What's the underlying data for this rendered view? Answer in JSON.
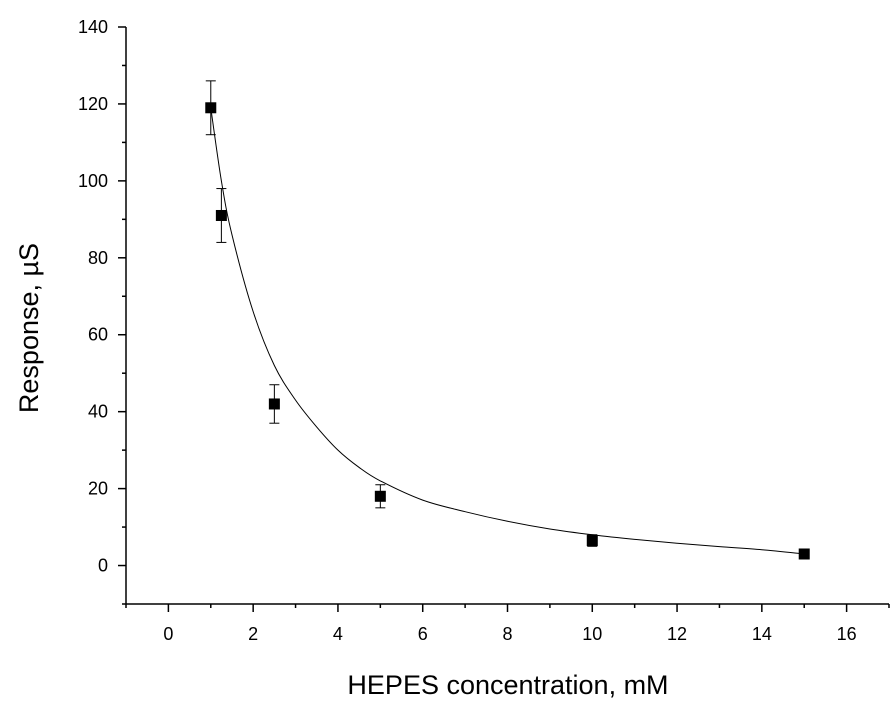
{
  "chart_data": {
    "type": "scatter",
    "title": "",
    "xlabel": "HEPES concentration, mM",
    "ylabel": "Response, µS",
    "xlim": [
      -1,
      17
    ],
    "ylim": [
      -10,
      140
    ],
    "x_ticks": [
      0,
      2,
      4,
      6,
      8,
      10,
      12,
      14,
      16
    ],
    "x_tick_labels": [
      "0",
      "2",
      "4",
      "6",
      "8",
      "10",
      "12",
      "14",
      "16"
    ],
    "y_ticks": [
      0,
      20,
      40,
      60,
      80,
      100,
      120,
      140
    ],
    "y_tick_labels": [
      "0",
      "20",
      "40",
      "60",
      "80",
      "100",
      "120",
      "140"
    ],
    "grid": false,
    "legend": "none",
    "series": [
      {
        "marker": "filled-square",
        "color": "#000000",
        "x": [
          1.0,
          1.25,
          2.5,
          5.0,
          10.0,
          15.0
        ],
        "y": [
          119,
          91,
          42,
          18,
          6.5,
          3
        ],
        "error": [
          7,
          7,
          5,
          3,
          1.5,
          0
        ]
      }
    ],
    "fit_curve": {
      "kind": "smooth decay fit",
      "color": "#000000",
      "points": [
        [
          1.0,
          119
        ],
        [
          1.25,
          100
        ],
        [
          1.5,
          86
        ],
        [
          2.0,
          66
        ],
        [
          2.5,
          52
        ],
        [
          3.0,
          43
        ],
        [
          3.5,
          36
        ],
        [
          4.0,
          30
        ],
        [
          4.5,
          25.5
        ],
        [
          5.0,
          22
        ],
        [
          6.0,
          17
        ],
        [
          7.0,
          14
        ],
        [
          8.0,
          11.5
        ],
        [
          9.0,
          9.5
        ],
        [
          10.0,
          8
        ],
        [
          11.0,
          6.8
        ],
        [
          12.0,
          5.8
        ],
        [
          13.0,
          4.9
        ],
        [
          14.0,
          4.1
        ],
        [
          15.0,
          3
        ]
      ]
    }
  }
}
